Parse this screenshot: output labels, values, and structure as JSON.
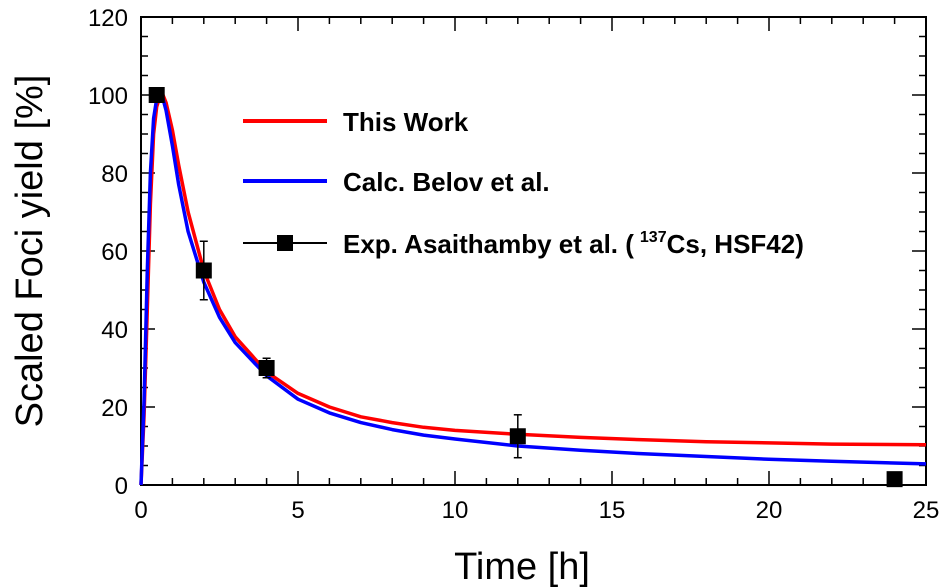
{
  "chart_data": {
    "type": "line",
    "xlabel": "Time [h]",
    "ylabel": "Scaled Foci yield [%]",
    "xlim": [
      0,
      25
    ],
    "ylim": [
      0,
      120
    ],
    "x_ticks": [
      "0",
      "5",
      "10",
      "15",
      "20",
      "25"
    ],
    "y_ticks": [
      "0",
      "20",
      "40",
      "60",
      "80",
      "100",
      "120"
    ],
    "grid": false,
    "legend_position": "upper-right",
    "series": [
      {
        "name": "This Work",
        "kind": "line",
        "color": "#ff0000",
        "x": [
          0,
          0.1,
          0.2,
          0.3,
          0.4,
          0.5,
          0.6,
          0.7,
          0.8,
          1.0,
          1.2,
          1.5,
          2.0,
          2.5,
          3.0,
          4.0,
          5.0,
          6.0,
          7.0,
          8.0,
          9.0,
          10.0,
          12.0,
          14.0,
          16.0,
          18.0,
          20.0,
          22.0,
          25.0
        ],
        "y": [
          0,
          18,
          45,
          72,
          90,
          97,
          99.5,
          100,
          98,
          91,
          82,
          70,
          55,
          45,
          38,
          29,
          23.5,
          20,
          17.5,
          16,
          14.8,
          14,
          13,
          12.2,
          11.6,
          11.1,
          10.8,
          10.5,
          10.3
        ]
      },
      {
        "name": "Calc. Belov et al.",
        "kind": "line",
        "color": "#0000ff",
        "x": [
          0,
          0.1,
          0.2,
          0.3,
          0.4,
          0.5,
          0.6,
          0.7,
          0.8,
          1.0,
          1.2,
          1.5,
          2.0,
          2.5,
          3.0,
          4.0,
          5.0,
          6.0,
          7.0,
          8.0,
          9.0,
          10.0,
          12.0,
          14.0,
          16.0,
          18.0,
          20.0,
          22.0,
          25.0
        ],
        "y": [
          0,
          22,
          55,
          80,
          94,
          99,
          100,
          99,
          96,
          87,
          77,
          65,
          52,
          43,
          36.5,
          28,
          22,
          18.5,
          16,
          14.2,
          12.8,
          11.8,
          10,
          8.9,
          8,
          7.3,
          6.6,
          6.1,
          5.4
        ]
      },
      {
        "name": "Exp. Asaithamby et al. (",
        "name_sup": "137",
        "name_tail": "Cs, HSF42)",
        "kind": "points",
        "color": "#000000",
        "x": [
          0.5,
          2,
          4,
          12,
          24
        ],
        "y": [
          100,
          55,
          30,
          12.5,
          1.5
        ],
        "yerr": [
          0,
          7.5,
          2.5,
          5.5,
          0
        ]
      }
    ]
  }
}
